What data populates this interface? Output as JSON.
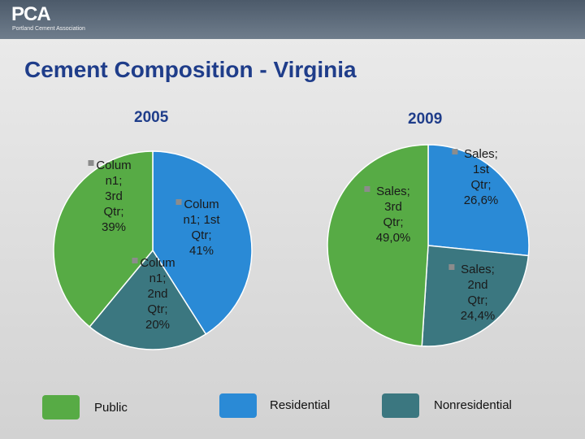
{
  "header": {
    "logo_text": "PCA",
    "logo_subtitle": "Portland Cement Association"
  },
  "slide_title": "Cement Composition - Virginia",
  "colors": {
    "public": "#57ab45",
    "residential": "#2a8ad6",
    "nonresidential": "#3b7780",
    "title": "#1f3d8a"
  },
  "chart_data": [
    {
      "type": "pie",
      "title": "2005",
      "slices": [
        {
          "name": "Column1; 1st Qtr",
          "category": "Residential",
          "value": 41,
          "label_lines": [
            "Colum",
            "n1; 1st",
            "Qtr;",
            "41%"
          ]
        },
        {
          "name": "Column1; 2nd Qtr",
          "category": "Nonresidential",
          "value": 20,
          "label_lines": [
            "Colum",
            "n1;",
            "2nd",
            "Qtr;",
            "20%"
          ]
        },
        {
          "name": "Column1; 3rd Qtr",
          "category": "Public",
          "value": 39,
          "label_lines": [
            "Colum",
            "n1;",
            "3rd",
            "Qtr;",
            "39%"
          ]
        }
      ]
    },
    {
      "type": "pie",
      "title": "2009",
      "slices": [
        {
          "name": "Sales; 1st Qtr",
          "category": "Residential",
          "value": 26.6,
          "label_lines": [
            "Sales;",
            "1st",
            "Qtr;",
            "26,6%"
          ]
        },
        {
          "name": "Sales; 2nd Qtr",
          "category": "Nonresidential",
          "value": 24.4,
          "label_lines": [
            "Sales;",
            "2nd",
            "Qtr;",
            "24,4%"
          ]
        },
        {
          "name": "Sales; 3rd Qtr",
          "category": "Public",
          "value": 49.0,
          "label_lines": [
            "Sales;",
            "3rd",
            "Qtr;",
            "49,0%"
          ]
        }
      ]
    }
  ],
  "legend": [
    {
      "label": "Public",
      "color": "#57ab45"
    },
    {
      "label": "Residential",
      "color": "#2a8ad6"
    },
    {
      "label": "Nonresidential",
      "color": "#3b7780"
    }
  ]
}
